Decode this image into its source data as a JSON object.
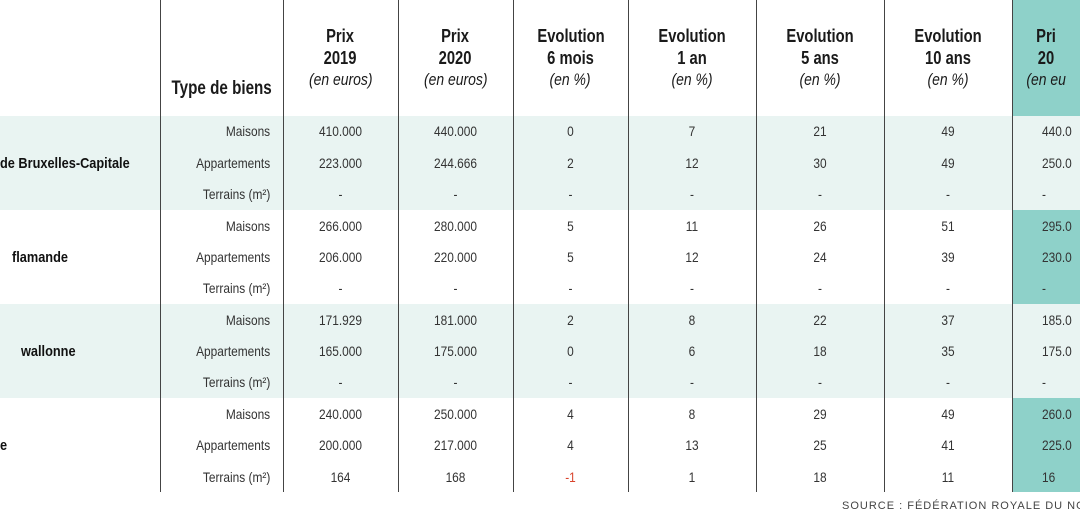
{
  "headers": {
    "type": "Type de biens",
    "columns": [
      {
        "l1": "Prix",
        "l2": "2019",
        "l3": "(en euros)"
      },
      {
        "l1": "Prix",
        "l2": "2020",
        "l3": "(en euros)"
      },
      {
        "l1": "Evolution",
        "l2": "6 mois",
        "l3": "(en %)"
      },
      {
        "l1": "Evolution",
        "l2": "1 an",
        "l3": "(en %)"
      },
      {
        "l1": "Evolution",
        "l2": "5 ans",
        "l3": "(en %)"
      },
      {
        "l1": "Evolution",
        "l2": "10 ans",
        "l3": "(en %)"
      },
      {
        "l1": "Pri",
        "l2": "20",
        "l3": "(en eu"
      }
    ]
  },
  "regions": [
    {
      "name": "de Bruxelles-Capitale",
      "rows": [
        {
          "type": "Maisons",
          "values": [
            "410.000",
            "440.000",
            "0",
            "7",
            "21",
            "49",
            "440.0"
          ]
        },
        {
          "type": "Appartements",
          "values": [
            "223.000",
            "244.666",
            "2",
            "12",
            "30",
            "49",
            "250.0"
          ]
        },
        {
          "type": "Terrains (m²)",
          "values": [
            "-",
            "-",
            "-",
            "-",
            "-",
            "-",
            "-"
          ]
        }
      ]
    },
    {
      "name": "flamande",
      "rows": [
        {
          "type": "Maisons",
          "values": [
            "266.000",
            "280.000",
            "5",
            "11",
            "26",
            "51",
            "295.0"
          ]
        },
        {
          "type": "Appartements",
          "values": [
            "206.000",
            "220.000",
            "5",
            "12",
            "24",
            "39",
            "230.0"
          ]
        },
        {
          "type": "Terrains (m²)",
          "values": [
            "-",
            "-",
            "-",
            "-",
            "-",
            "-",
            "-"
          ]
        }
      ]
    },
    {
      "name": "wallonne",
      "rows": [
        {
          "type": "Maisons",
          "values": [
            "171.929",
            "181.000",
            "2",
            "8",
            "22",
            "37",
            "185.0"
          ]
        },
        {
          "type": "Appartements",
          "values": [
            "165.000",
            "175.000",
            "0",
            "6",
            "18",
            "35",
            "175.0"
          ]
        },
        {
          "type": "Terrains (m²)",
          "values": [
            "-",
            "-",
            "-",
            "-",
            "-",
            "-",
            "-"
          ]
        }
      ]
    },
    {
      "name": "e",
      "rows": [
        {
          "type": "Maisons",
          "values": [
            "240.000",
            "250.000",
            "4",
            "8",
            "29",
            "49",
            "260.0"
          ]
        },
        {
          "type": "Appartements",
          "values": [
            "200.000",
            "217.000",
            "4",
            "13",
            "25",
            "41",
            "225.0"
          ]
        },
        {
          "type": "Terrains (m²)",
          "values": [
            "164",
            "168",
            "-1",
            "1",
            "18",
            "11",
            "16"
          ]
        }
      ]
    }
  ],
  "source": "SOURCE : FÉDÉRATION ROYALE DU NOTAR",
  "colors": {
    "band": "#e9f4f2",
    "highlight": "#8ed1c9",
    "negative": "#d9442c"
  }
}
